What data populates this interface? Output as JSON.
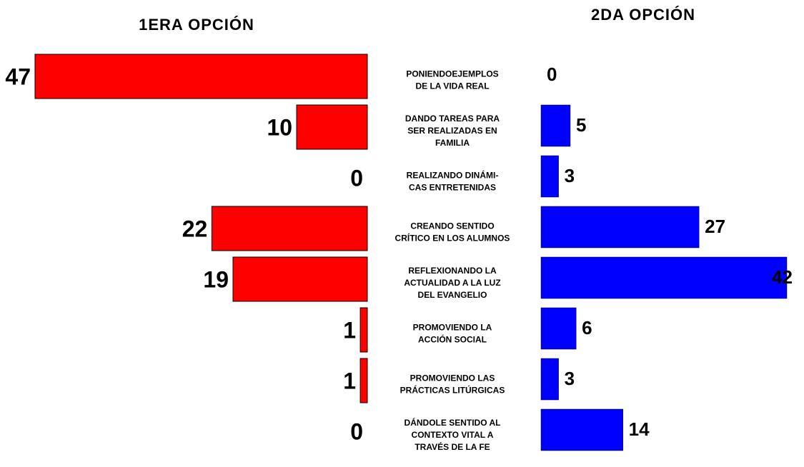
{
  "chart_data": {
    "type": "butterfly-bar",
    "categories": [
      [
        "PONIENDOEJEMPLOS",
        "DE LA VIDA REAL"
      ],
      [
        "DANDO TAREAS PARA",
        "SER REALIZADAS EN",
        "FAMILIA"
      ],
      [
        "REALIZANDO DINÁMI-",
        "CAS ENTRETENIDAS"
      ],
      [
        "CREANDO SENTIDO",
        "CRÍTICO EN LOS ALUMNOS"
      ],
      [
        "REFLEXIONANDO LA",
        "ACTUALIDAD A LA LUZ",
        "DEL EVANGELIO"
      ],
      [
        "PROMOVIENDO LA",
        "ACCIÓN SOCIAL"
      ],
      [
        "PROMOVIENDO LAS",
        "PRÁCTICAS LITÚRGICAS"
      ],
      [
        "DÁNDOLE SENTIDO AL",
        "CONTEXTO VITAL A",
        "TRAVÉS DE LA FE"
      ]
    ],
    "series": [
      {
        "name": "1ERA OPCIÓN",
        "color": "#ff0000",
        "values": [
          47,
          10,
          0,
          22,
          19,
          1,
          1,
          0
        ]
      },
      {
        "name": "2DA OPCIÓN",
        "color": "#0000ff",
        "values": [
          0,
          5,
          3,
          27,
          42,
          6,
          3,
          14
        ]
      }
    ]
  }
}
